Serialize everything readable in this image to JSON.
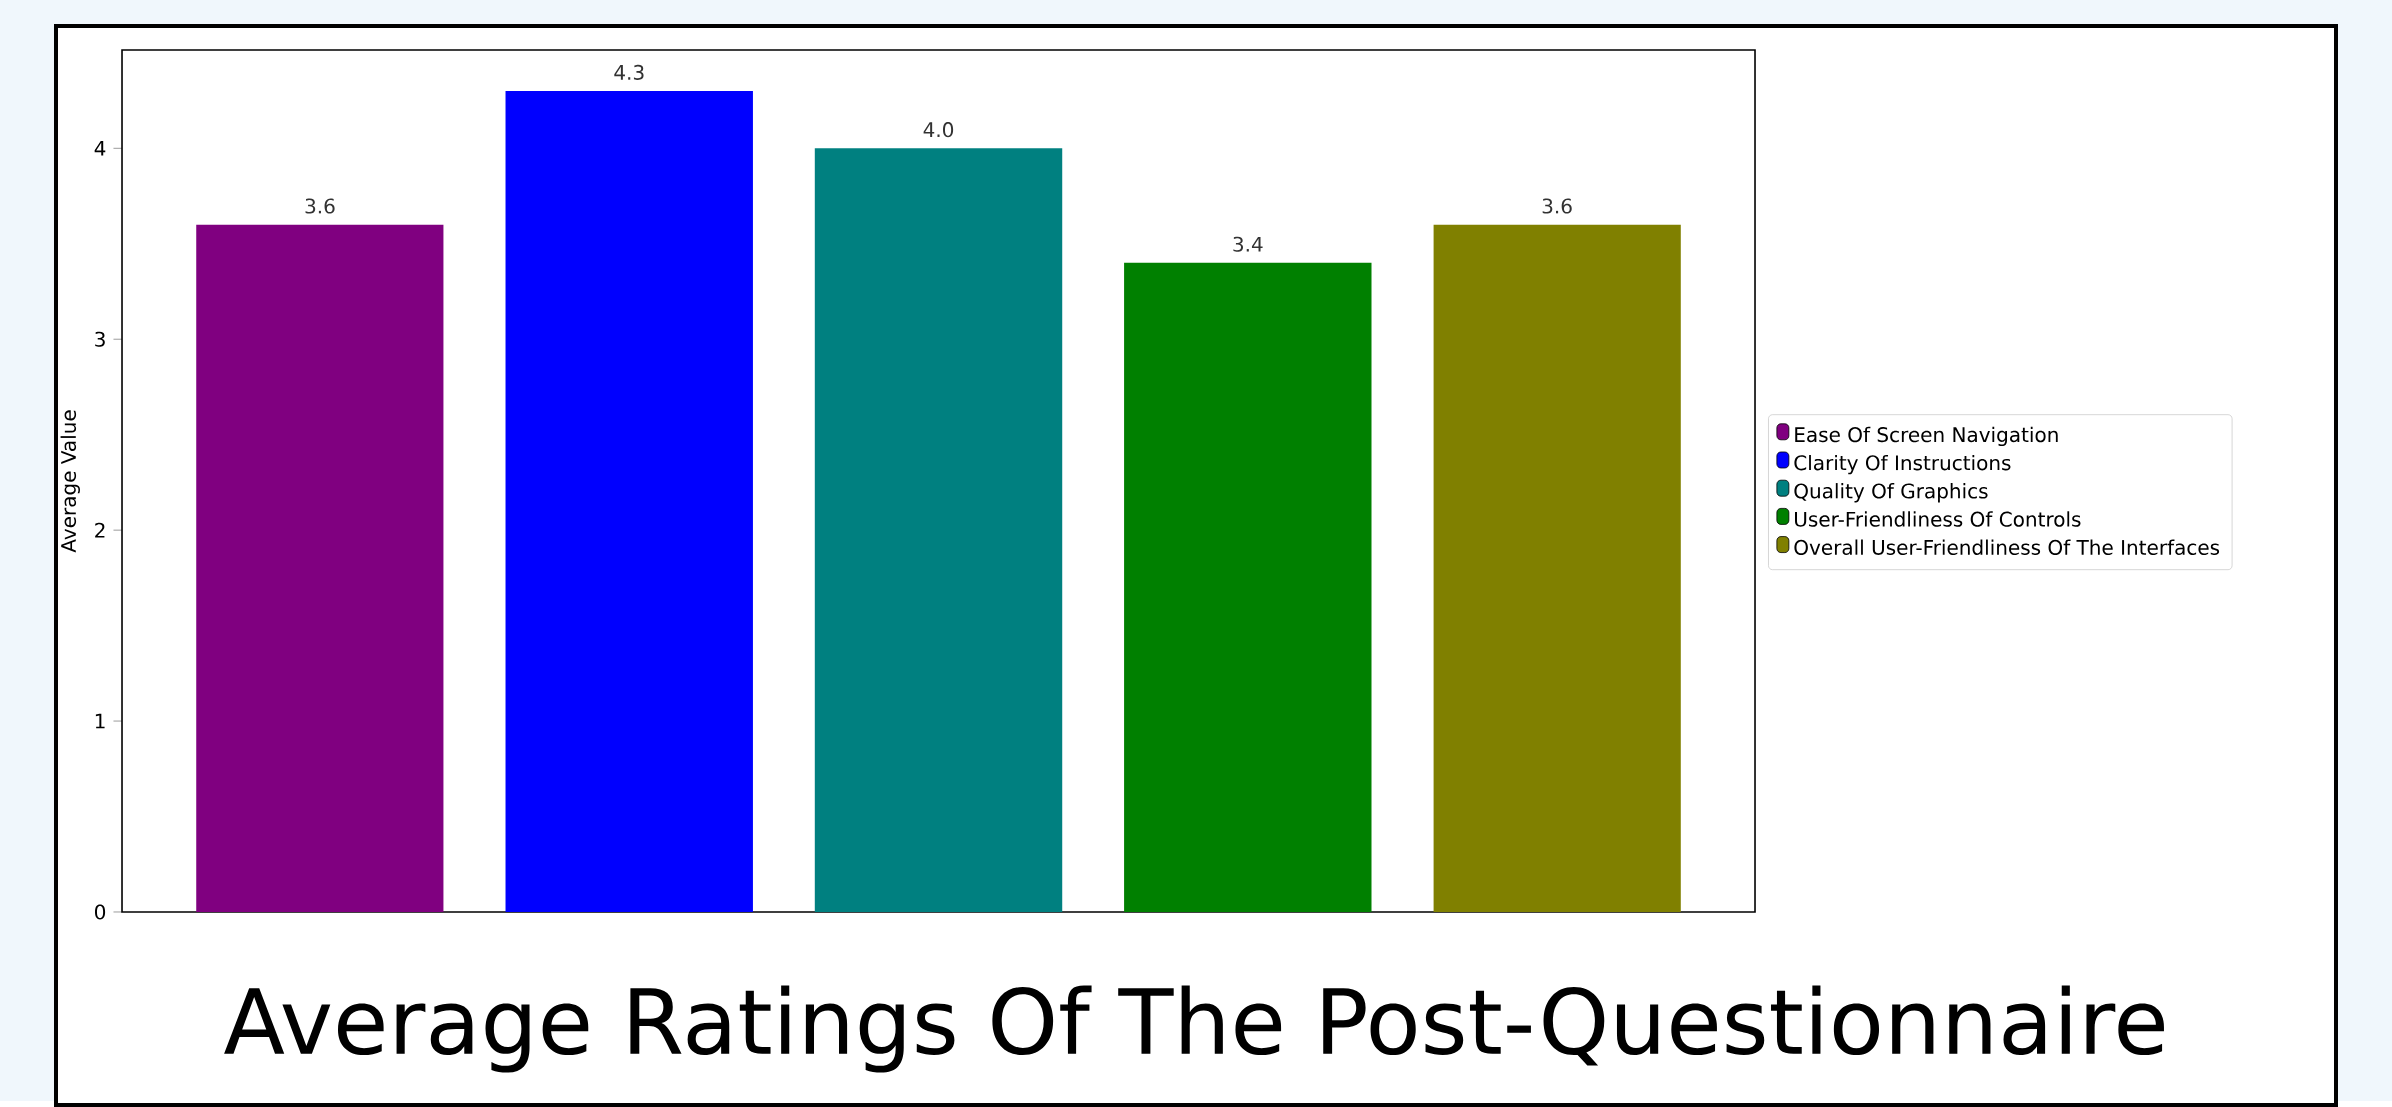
{
  "chart_data": {
    "type": "bar",
    "title": "Average Ratings Of The Post-Questionnaire",
    "ylabel": "Average Value",
    "categories": [
      null,
      null,
      null,
      null,
      null
    ],
    "stacked": true,
    "series": [
      {
        "name": "Ease Of Screen Navigation",
        "color": "#800080",
        "values": [
          3.6,
          0,
          0,
          0,
          0
        ],
        "value_labels": [
          "3.6",
          null,
          null,
          null,
          null
        ]
      },
      {
        "name": "Clarity Of Instructions",
        "color": "#0000ff",
        "values": [
          0,
          4.3,
          0,
          0,
          0
        ],
        "value_labels": [
          null,
          "4.3",
          null,
          null,
          null
        ]
      },
      {
        "name": "Quality Of Graphics",
        "color": "#008080",
        "values": [
          0,
          0,
          4.0,
          0,
          0
        ],
        "value_labels": [
          null,
          null,
          "4.0",
          null,
          null
        ]
      },
      {
        "name": "User-Friendliness Of Controls",
        "color": "#008000",
        "values": [
          0,
          0,
          0,
          3.4,
          0
        ],
        "value_labels": [
          null,
          null,
          null,
          "3.4",
          null
        ]
      },
      {
        "name": "Overall User-Friendliness Of The Interfaces",
        "color": "#808000",
        "values": [
          0,
          0,
          0,
          0,
          3.6
        ],
        "value_labels": [
          null,
          null,
          null,
          null,
          "3.6"
        ]
      }
    ],
    "ylim": [
      0,
      4.515
    ],
    "yticks": [
      0,
      1,
      2,
      3,
      4
    ],
    "legend": "right",
    "grid": false
  }
}
